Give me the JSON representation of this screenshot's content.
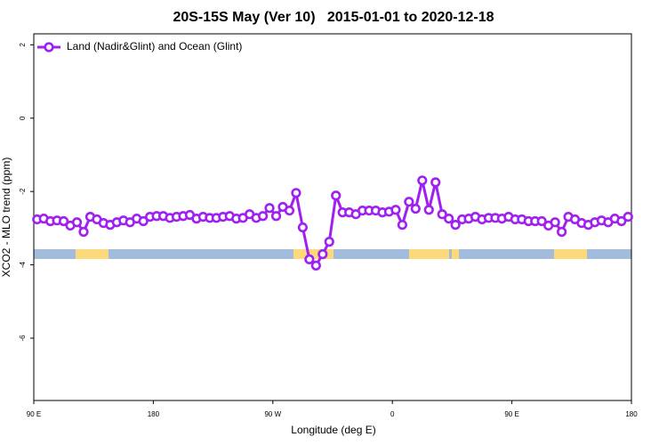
{
  "chart_data": {
    "type": "line",
    "title": "20S-15S May (Ver 10)   2015-01-01 to 2020-12-18",
    "x_label": "Longitude (deg E)",
    "y_label": "XCO2 - MLO trend (ppm)",
    "xlim": [
      90,
      540
    ],
    "xticks": [
      {
        "value": 90,
        "label": "90 E"
      },
      180,
      {
        "value": 270,
        "label": "90 W"
      },
      {
        "value": 360,
        "label": "0"
      },
      {
        "value": 450,
        "label": "90 E"
      },
      {
        "value": 540,
        "label": "180"
      }
    ],
    "ylim": [
      -7.7,
      2.3
    ],
    "yticks": [
      2,
      0,
      -2,
      -4,
      -6
    ],
    "grid": false,
    "legend": "top-left",
    "x": [
      92.5,
      97.5,
      102.5,
      107.5,
      112.5,
      117.5,
      122.5,
      127.5,
      132.5,
      137.5,
      142.5,
      147.5,
      152.5,
      157.5,
      162.5,
      167.5,
      172.5,
      177.5,
      182.5,
      187.5,
      192.5,
      197.5,
      202.5,
      207.5,
      212.5,
      217.5,
      222.5,
      227.5,
      232.5,
      237.5,
      242.5,
      247.5,
      252.5,
      257.5,
      262.5,
      267.5,
      272.5,
      277.5,
      282.5,
      287.5,
      292.5,
      297.5,
      302.5,
      307.5,
      312.5,
      317.5,
      322.5,
      327.5,
      332.5,
      337.5,
      342.5,
      347.5,
      352.5,
      357.5,
      362.5,
      367.5,
      372.5,
      377.5,
      382.5,
      387.5,
      392.5,
      397.5,
      402.5,
      407.5,
      412.5,
      417.5,
      422.5,
      427.5,
      432.5,
      437.5,
      442.5,
      447.5,
      452.5,
      457.5,
      462.5,
      467.5,
      472.5,
      477.5,
      482.5,
      487.5,
      492.5,
      497.5,
      502.5,
      507.5,
      512.5,
      517.5,
      522.5,
      527.5,
      532.5,
      537.5
    ],
    "series": [
      {
        "name": "Land (Nadir&Glint) and Ocean (Glint)",
        "color": "#a020f0",
        "values": [
          -2.76,
          -2.74,
          -2.81,
          -2.79,
          -2.81,
          -2.93,
          -2.84,
          -3.1,
          -2.69,
          -2.76,
          -2.86,
          -2.91,
          -2.84,
          -2.79,
          -2.84,
          -2.74,
          -2.81,
          -2.69,
          -2.67,
          -2.67,
          -2.72,
          -2.69,
          -2.67,
          -2.64,
          -2.74,
          -2.69,
          -2.72,
          -2.72,
          -2.69,
          -2.67,
          -2.74,
          -2.72,
          -2.62,
          -2.72,
          -2.67,
          -2.45,
          -2.67,
          -2.42,
          -2.52,
          -2.04,
          -2.98,
          -3.85,
          -4.02,
          -3.71,
          -3.37,
          -2.11,
          -2.57,
          -2.57,
          -2.62,
          -2.52,
          -2.52,
          -2.52,
          -2.57,
          -2.55,
          -2.5,
          -2.91,
          -2.28,
          -2.47,
          -1.7,
          -2.5,
          -1.75,
          -2.62,
          -2.74,
          -2.91,
          -2.76,
          -2.74,
          -2.69,
          -2.76,
          -2.72,
          -2.72,
          -2.74,
          -2.69,
          -2.76,
          -2.76,
          -2.81,
          -2.81,
          -2.81,
          -2.93,
          -2.84,
          -3.1,
          -2.69,
          -2.76,
          -2.86,
          -2.91,
          -2.84,
          -2.79,
          -2.84,
          -2.74,
          -2.81,
          -2.69
        ]
      }
    ]
  }
}
